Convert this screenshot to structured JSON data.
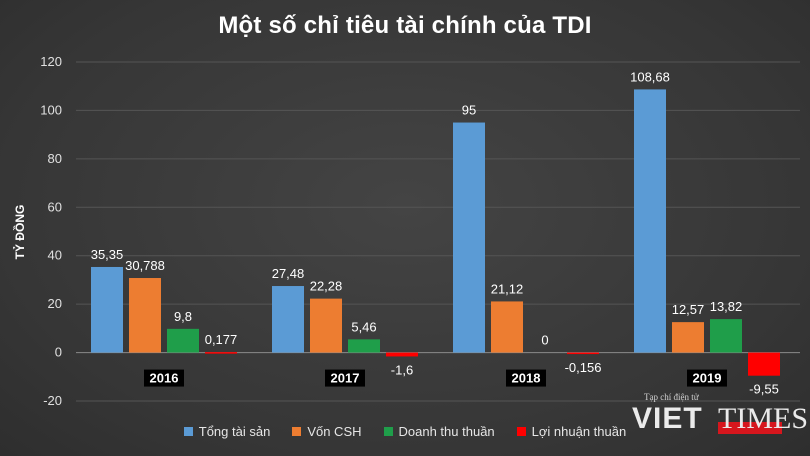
{
  "title": "Một số chỉ tiêu tài chính của TDI",
  "chart_data": {
    "type": "bar",
    "title": "Một số chỉ tiêu tài chính của TDI",
    "ylabel": "TỶ ĐỒNG",
    "xlabel": "",
    "ylim": [
      -20,
      120
    ],
    "yticks": [
      -20,
      0,
      20,
      40,
      60,
      80,
      100,
      120
    ],
    "grid": true,
    "legend_position": "bottom",
    "categories": [
      "2016",
      "2017",
      "2018",
      "2019"
    ],
    "series": [
      {
        "name": "Tổng tài sản",
        "color": "#5b9bd5",
        "values": [
          35.35,
          27.48,
          95,
          108.68
        ],
        "labels": [
          "35,35",
          "27,48",
          "95",
          "108,68"
        ]
      },
      {
        "name": "Vốn CSH",
        "color": "#ed7d31",
        "values": [
          30.788,
          22.28,
          21.12,
          12.57
        ],
        "labels": [
          "30,788",
          "22,28",
          "21,12",
          "12,57"
        ]
      },
      {
        "name": "Doanh thu thuần",
        "color": "#1f9e4a",
        "values": [
          9.8,
          5.46,
          0,
          13.82
        ],
        "labels": [
          "9,8",
          "5,46",
          "0",
          "13,82"
        ]
      },
      {
        "name": "Lợi nhuận thuần",
        "color": "#ff0000",
        "values": [
          0.177,
          -1.6,
          -0.156,
          -9.55
        ],
        "labels": [
          "0,177",
          "-1,6",
          "-0,156",
          "-9,55"
        ]
      }
    ]
  },
  "watermark": {
    "tagline": "Tạp chí điện tử",
    "brand_left": "VIET",
    "brand_right": "TIMES"
  }
}
